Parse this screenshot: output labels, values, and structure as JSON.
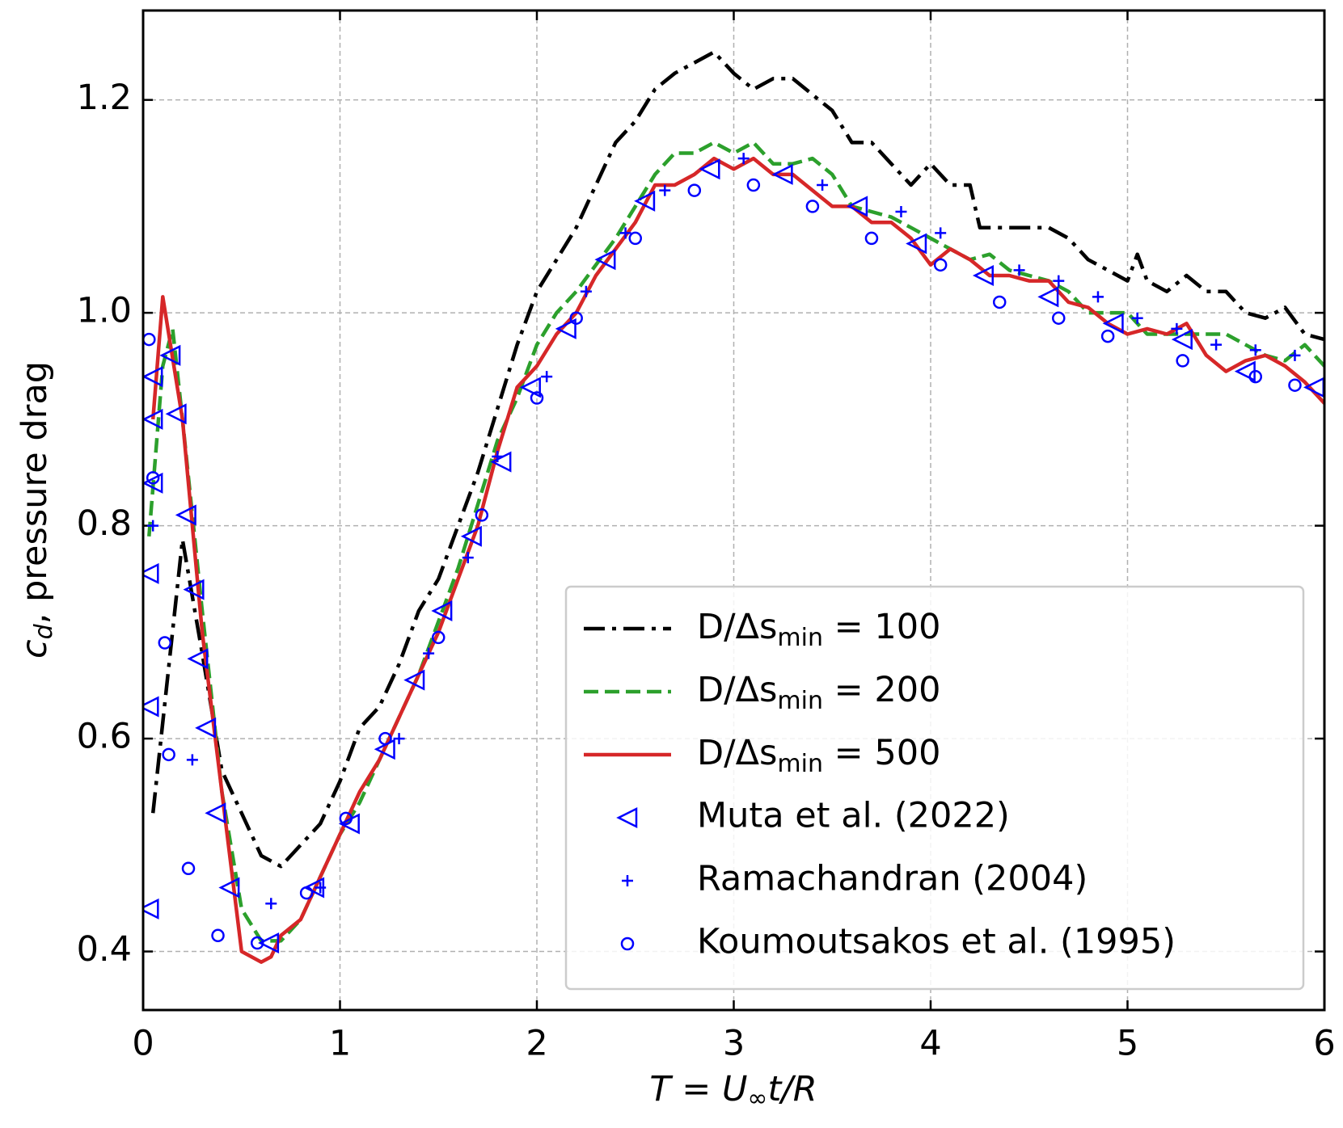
{
  "chart_data": {
    "type": "line",
    "xlabel": [
      "T = U",
      "∞",
      "t/R"
    ],
    "ylabel": [
      "c",
      "d",
      ", pressure drag"
    ],
    "xlim": [
      0,
      6
    ],
    "xticks": [
      0,
      1,
      2,
      3,
      4,
      5,
      6
    ],
    "ylim": [
      0.345,
      1.284
    ],
    "yticks": [
      0.4,
      0.6,
      0.8,
      {
        "value": 1,
        "label": "1.0"
      },
      1.2
    ],
    "grid": true,
    "legend": "lower right",
    "series": [
      {
        "name": [
          "D/Δs",
          "min",
          " = 100"
        ],
        "color": "#000000",
        "linestyle": "dashdot",
        "x": [
          0.05,
          0.2,
          0.3,
          0.4,
          0.5,
          0.6,
          0.7,
          0.8,
          0.9,
          1.0,
          1.1,
          1.2,
          1.3,
          1.4,
          1.5,
          1.6,
          1.7,
          1.8,
          1.9,
          2.0,
          2.1,
          2.2,
          2.3,
          2.4,
          2.5,
          2.6,
          2.7,
          2.8,
          2.9,
          3.0,
          3.1,
          3.2,
          3.3,
          3.4,
          3.5,
          3.6,
          3.7,
          3.8,
          3.9,
          4.0,
          4.1,
          4.2,
          4.25,
          4.4,
          4.5,
          4.6,
          4.7,
          4.8,
          4.9,
          5.0,
          5.05,
          5.1,
          5.2,
          5.3,
          5.4,
          5.5,
          5.6,
          5.7,
          5.8,
          5.9,
          6.0
        ],
        "values": [
          0.53,
          0.787,
          0.68,
          0.57,
          0.53,
          0.49,
          0.48,
          0.5,
          0.52,
          0.56,
          0.61,
          0.63,
          0.67,
          0.72,
          0.75,
          0.8,
          0.85,
          0.91,
          0.97,
          1.02,
          1.05,
          1.08,
          1.12,
          1.16,
          1.18,
          1.21,
          1.225,
          1.235,
          1.245,
          1.225,
          1.21,
          1.22,
          1.22,
          1.205,
          1.19,
          1.16,
          1.16,
          1.14,
          1.12,
          1.14,
          1.12,
          1.12,
          1.08,
          1.08,
          1.08,
          1.08,
          1.07,
          1.05,
          1.04,
          1.03,
          1.055,
          1.03,
          1.02,
          1.035,
          1.02,
          1.02,
          1.0,
          0.995,
          1.005,
          0.98,
          0.975
        ]
      },
      {
        "name": [
          "D/Δs",
          "min",
          " = 200"
        ],
        "color": "#2ca02c",
        "linestyle": "dashed",
        "x": [
          0.03,
          0.1,
          0.15,
          0.2,
          0.3,
          0.4,
          0.5,
          0.6,
          0.7,
          0.8,
          0.9,
          1.0,
          1.1,
          1.2,
          1.3,
          1.4,
          1.5,
          1.6,
          1.7,
          1.8,
          1.9,
          2.0,
          2.1,
          2.2,
          2.3,
          2.4,
          2.5,
          2.6,
          2.7,
          2.8,
          2.9,
          3.0,
          3.1,
          3.2,
          3.3,
          3.4,
          3.5,
          3.6,
          3.7,
          3.8,
          3.9,
          4.0,
          4.1,
          4.2,
          4.3,
          4.4,
          4.5,
          4.6,
          4.7,
          4.8,
          4.9,
          5.0,
          5.1,
          5.2,
          5.3,
          5.4,
          5.5,
          5.6,
          5.7,
          5.8,
          5.9,
          6.0
        ],
        "values": [
          0.79,
          0.95,
          0.985,
          0.9,
          0.72,
          0.55,
          0.44,
          0.41,
          0.41,
          0.43,
          0.47,
          0.51,
          0.54,
          0.58,
          0.62,
          0.66,
          0.71,
          0.76,
          0.82,
          0.88,
          0.92,
          0.97,
          1.0,
          1.02,
          1.045,
          1.07,
          1.1,
          1.13,
          1.15,
          1.15,
          1.16,
          1.15,
          1.16,
          1.14,
          1.14,
          1.145,
          1.13,
          1.1,
          1.095,
          1.09,
          1.08,
          1.07,
          1.06,
          1.05,
          1.055,
          1.04,
          1.035,
          1.03,
          1.02,
          1.0,
          1.0,
          1.0,
          0.98,
          0.98,
          0.98,
          0.98,
          0.98,
          0.97,
          0.96,
          0.955,
          0.97,
          0.95
        ]
      },
      {
        "name": [
          "D/Δs",
          "min",
          " = 500"
        ],
        "color": "#d62728",
        "linestyle": "solid",
        "x": [
          0.05,
          0.1,
          0.2,
          0.3,
          0.4,
          0.5,
          0.6,
          0.65,
          0.7,
          0.8,
          0.9,
          1.0,
          1.1,
          1.2,
          1.3,
          1.4,
          1.5,
          1.6,
          1.7,
          1.8,
          1.9,
          2.0,
          2.1,
          2.2,
          2.3,
          2.4,
          2.5,
          2.6,
          2.7,
          2.8,
          2.9,
          3.0,
          3.1,
          3.2,
          3.3,
          3.4,
          3.5,
          3.6,
          3.7,
          3.8,
          3.9,
          4.0,
          4.1,
          4.2,
          4.3,
          4.4,
          4.5,
          4.6,
          4.7,
          4.8,
          4.9,
          5.0,
          5.1,
          5.2,
          5.3,
          5.4,
          5.5,
          5.6,
          5.7,
          5.8,
          5.9,
          6.0
        ],
        "values": [
          0.9,
          1.015,
          0.9,
          0.7,
          0.55,
          0.4,
          0.39,
          0.395,
          0.415,
          0.43,
          0.47,
          0.51,
          0.55,
          0.58,
          0.62,
          0.66,
          0.7,
          0.75,
          0.8,
          0.87,
          0.93,
          0.95,
          0.98,
          1.0,
          1.035,
          1.06,
          1.085,
          1.12,
          1.12,
          1.13,
          1.145,
          1.135,
          1.145,
          1.13,
          1.13,
          1.115,
          1.1,
          1.1,
          1.085,
          1.085,
          1.07,
          1.045,
          1.06,
          1.05,
          1.035,
          1.035,
          1.03,
          1.03,
          1.01,
          1.005,
          0.99,
          0.98,
          0.985,
          0.98,
          0.99,
          0.96,
          0.945,
          0.955,
          0.96,
          0.95,
          0.935,
          0.915
        ]
      },
      {
        "name": "Muta et al. (2022)",
        "color": "#0000ff",
        "marker": "triangle-left",
        "x": [
          0.03,
          0.03,
          0.03,
          0.05,
          0.05,
          0.05,
          0.14,
          0.17,
          0.22,
          0.26,
          0.28,
          0.32,
          0.37,
          0.44,
          0.64,
          0.87,
          1.05,
          1.23,
          1.38,
          1.52,
          1.67,
          1.82,
          1.97,
          2.15,
          2.35,
          2.55,
          2.88,
          3.25,
          3.63,
          3.93,
          4.27,
          4.6,
          4.93,
          5.28,
          5.6,
          5.95
        ],
        "values": [
          0.44,
          0.63,
          0.755,
          0.84,
          0.9,
          0.94,
          0.96,
          0.905,
          0.81,
          0.74,
          0.675,
          0.61,
          0.53,
          0.46,
          0.408,
          0.46,
          0.52,
          0.59,
          0.655,
          0.72,
          0.79,
          0.86,
          0.93,
          0.985,
          1.05,
          1.105,
          1.135,
          1.13,
          1.1,
          1.065,
          1.035,
          1.015,
          0.99,
          0.975,
          0.945,
          0.93
        ]
      },
      {
        "name": "Ramachandran (2004)",
        "color": "#0000ff",
        "marker": "plus",
        "x": [
          0.05,
          0.25,
          0.65,
          0.9,
          1.3,
          1.45,
          1.65,
          1.8,
          2.05,
          2.25,
          2.45,
          2.65,
          3.05,
          3.45,
          3.85,
          4.05,
          4.45,
          4.65,
          4.85,
          5.05,
          5.25,
          5.45,
          5.65,
          5.85
        ],
        "values": [
          0.8,
          0.58,
          0.445,
          0.46,
          0.6,
          0.68,
          0.77,
          0.865,
          0.94,
          1.02,
          1.075,
          1.115,
          1.145,
          1.12,
          1.095,
          1.075,
          1.04,
          1.03,
          1.015,
          0.995,
          0.985,
          0.97,
          0.965,
          0.96
        ]
      },
      {
        "name": "Koumoutsakos et al. (1995)",
        "color": "#0000ff",
        "marker": "circle",
        "x": [
          0.03,
          0.05,
          0.11,
          0.13,
          0.23,
          0.38,
          0.58,
          0.83,
          1.03,
          1.23,
          1.5,
          1.72,
          2.0,
          2.2,
          2.5,
          2.8,
          3.1,
          3.4,
          3.7,
          4.05,
          4.35,
          4.65,
          4.9,
          5.28,
          5.65,
          5.85
        ],
        "values": [
          0.975,
          0.845,
          0.69,
          0.585,
          0.478,
          0.415,
          0.408,
          0.455,
          0.525,
          0.6,
          0.695,
          0.81,
          0.92,
          0.995,
          1.07,
          1.115,
          1.12,
          1.1,
          1.07,
          1.045,
          1.01,
          0.995,
          0.978,
          0.955,
          0.94,
          0.932
        ]
      }
    ]
  }
}
